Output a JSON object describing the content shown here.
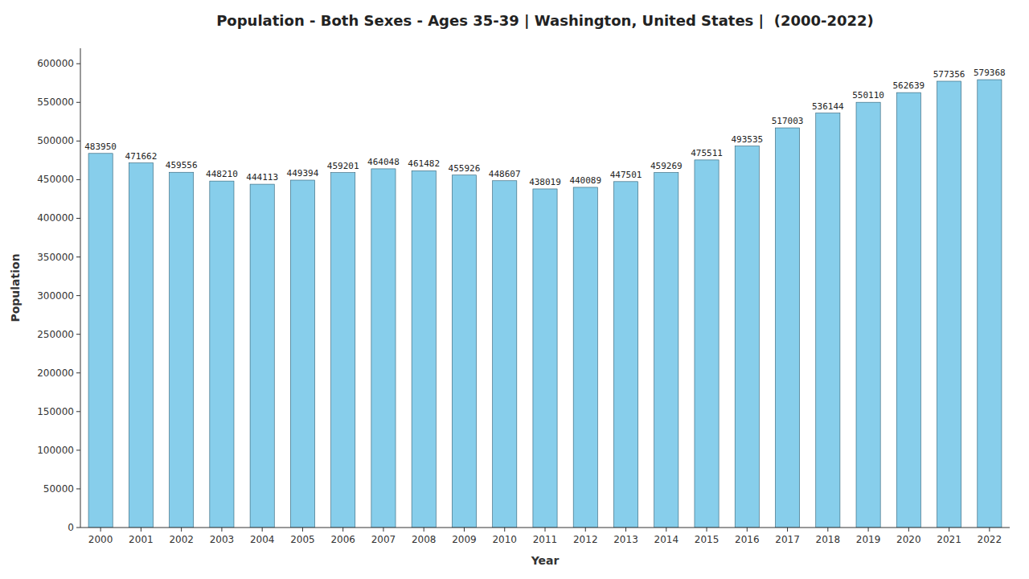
{
  "chart_data": {
    "type": "bar",
    "title": "Population - Both Sexes - Ages 35-39 | Washington, United States |  (2000-2022)",
    "xlabel": "Year",
    "ylabel": "Population",
    "categories": [
      "2000",
      "2001",
      "2002",
      "2003",
      "2004",
      "2005",
      "2006",
      "2007",
      "2008",
      "2009",
      "2010",
      "2011",
      "2012",
      "2013",
      "2014",
      "2015",
      "2016",
      "2017",
      "2018",
      "2019",
      "2020",
      "2021",
      "2022"
    ],
    "values": [
      483950,
      471662,
      459556,
      448210,
      444113,
      449394,
      459201,
      464048,
      461482,
      455926,
      448607,
      438019,
      440089,
      447501,
      459269,
      475511,
      493535,
      517003,
      536144,
      550110,
      562639,
      577356,
      579368
    ],
    "color": "#87CEEB",
    "ylim": [
      0,
      620000
    ],
    "yticks": [
      0,
      50000,
      100000,
      150000,
      200000,
      250000,
      300000,
      350000,
      400000,
      450000,
      500000,
      550000,
      600000
    ],
    "grid": false,
    "data_labels": true
  }
}
